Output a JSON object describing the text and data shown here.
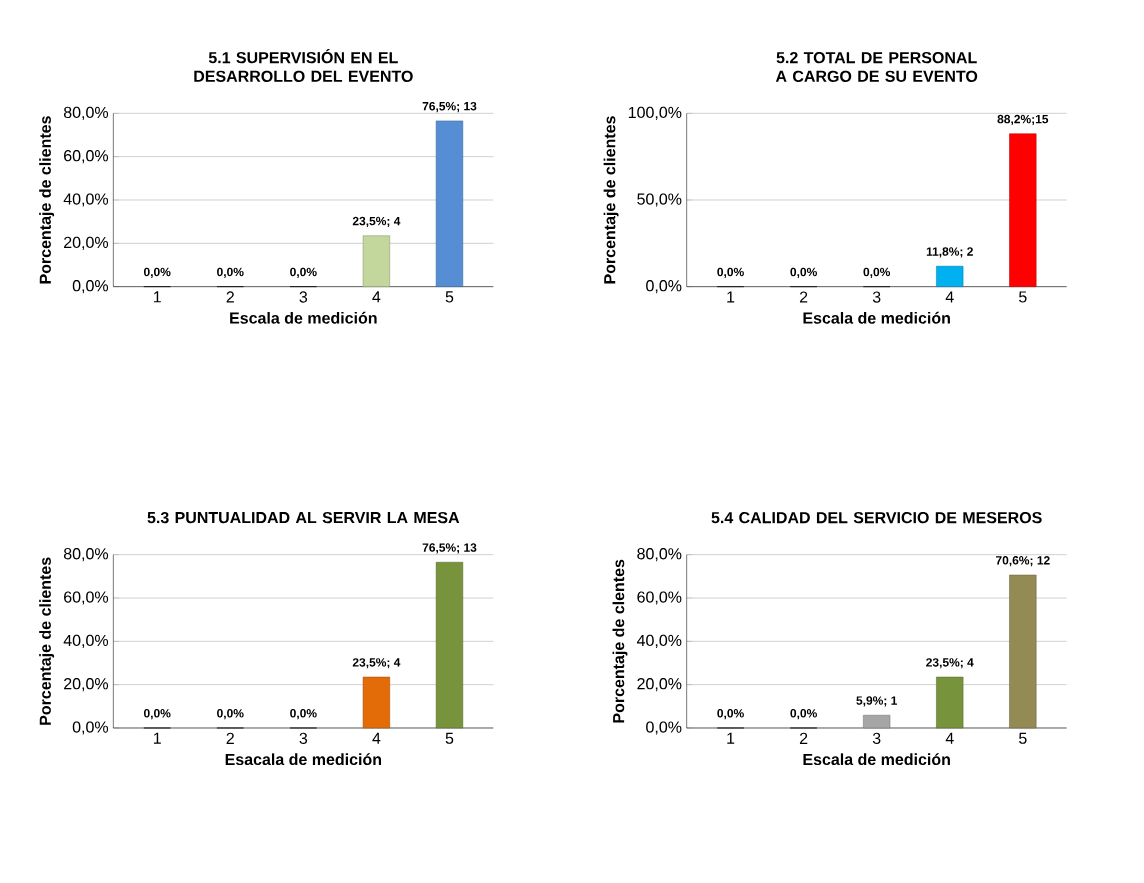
{
  "chart_data": [
    {
      "type": "bar",
      "title": "5.1 SUPERVISIÓN EN EL DESARROLLO DEL EVENTO",
      "xlabel": "Escala de medición",
      "ylabel": "Porcentaje de clientes",
      "categories": [
        "1",
        "2",
        "3",
        "4",
        "5"
      ],
      "values": [
        0,
        0,
        0,
        23.5,
        76.5
      ],
      "colors": [
        "#000000",
        "#000000",
        "#000000",
        "#c3d69b",
        "#558ed5"
      ],
      "value_labels": [
        "0,0%",
        "0,0%",
        "0,0%",
        "23,5%; 4",
        "76,5%; 13"
      ],
      "ylim": [
        0,
        80
      ],
      "yticks": [
        {
          "value": 0,
          "label": "0,0%"
        },
        {
          "value": 20,
          "label": "20,0%"
        },
        {
          "value": 40,
          "label": "40,0%"
        },
        {
          "value": 60,
          "label": "60,0%"
        },
        {
          "value": 80,
          "label": "80,0%"
        }
      ],
      "grid": "y"
    },
    {
      "type": "bar",
      "title": "5.2 TOTAL DE PERSONAL A CARGO DE SU EVENTO",
      "xlabel": "Escala de medición",
      "ylabel": "Porcentaje de clientes",
      "categories": [
        "1",
        "2",
        "3",
        "4",
        "5"
      ],
      "values": [
        0,
        0,
        0,
        11.8,
        88.2
      ],
      "colors": [
        "#000000",
        "#000000",
        "#000000",
        "#00b0f0",
        "#ff0000"
      ],
      "value_labels": [
        "0,0%",
        "0,0%",
        "0,0%",
        "11,8%; 2",
        "88,2%;15"
      ],
      "ylim": [
        0,
        100
      ],
      "yticks": [
        {
          "value": 0,
          "label": "0,0%"
        },
        {
          "value": 50,
          "label": "50,0%"
        },
        {
          "value": 100,
          "label": "100,0%"
        }
      ],
      "grid": "y"
    },
    {
      "type": "bar",
      "title": "5.3 PUNTUALIDAD AL SERVIR LA MESA",
      "xlabel": "Esacala de medición",
      "ylabel": "Porcentaje de clientes",
      "categories": [
        "1",
        "2",
        "3",
        "4",
        "5"
      ],
      "values": [
        0,
        0,
        0,
        23.5,
        76.5
      ],
      "colors": [
        "#000000",
        "#000000",
        "#000000",
        "#e36c09",
        "#77933c"
      ],
      "value_labels": [
        "0,0%",
        "0,0%",
        "0,0%",
        "23,5%; 4",
        "76,5%; 13"
      ],
      "ylim": [
        0,
        80
      ],
      "yticks": [
        {
          "value": 0,
          "label": "0,0%"
        },
        {
          "value": 20,
          "label": "20,0%"
        },
        {
          "value": 40,
          "label": "40,0%"
        },
        {
          "value": 60,
          "label": "60,0%"
        },
        {
          "value": 80,
          "label": "80,0%"
        }
      ],
      "grid": "y"
    },
    {
      "type": "bar",
      "title": "5.4 CALIDAD DEL SERVICIO DE MESEROS",
      "xlabel": "Escala de medición",
      "ylabel": "Porcentaje de clentes",
      "categories": [
        "1",
        "2",
        "3",
        "4",
        "5"
      ],
      "values": [
        0,
        0,
        5.9,
        23.5,
        70.6
      ],
      "colors": [
        "#000000",
        "#000000",
        "#a6a6a6",
        "#77933c",
        "#948a54"
      ],
      "value_labels": [
        "0,0%",
        "0,0%",
        "5,9%; 1",
        "23,5%; 4",
        "70,6%; 12"
      ],
      "ylim": [
        0,
        80
      ],
      "yticks": [
        {
          "value": 0,
          "label": "0,0%"
        },
        {
          "value": 20,
          "label": "20,0%"
        },
        {
          "value": 40,
          "label": "40,0%"
        },
        {
          "value": 60,
          "label": "60,0%"
        },
        {
          "value": 80,
          "label": "80,0%"
        }
      ],
      "grid": "y"
    }
  ]
}
